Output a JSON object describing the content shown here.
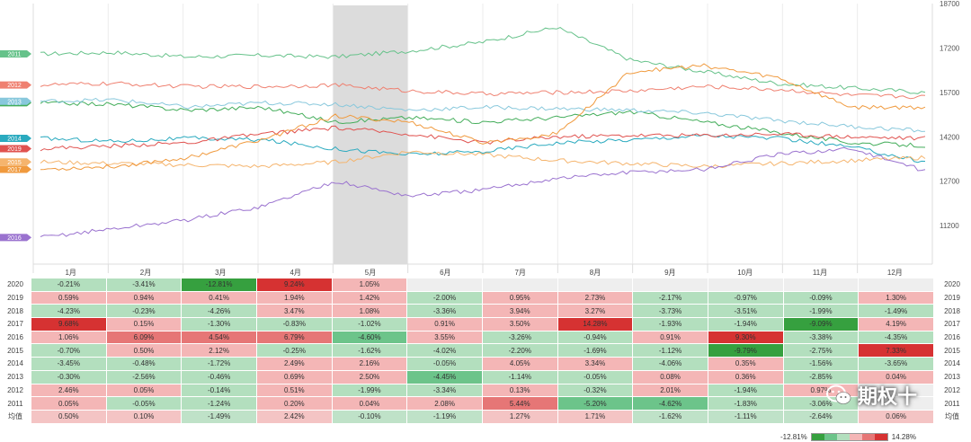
{
  "chart_data": {
    "type": "line",
    "title": "",
    "x_tick_labels": [
      "1月",
      "2月",
      "3月",
      "4月",
      "5月",
      "6月",
      "7月",
      "8月",
      "9月",
      "10月",
      "11月",
      "12月"
    ],
    "y_ticks": [
      18700,
      17200,
      15700,
      14200,
      12700,
      11200
    ],
    "ylim": [
      9900,
      18700
    ],
    "highlighted_month": "5月",
    "series": [
      {
        "name": "2011",
        "color": "#66c28a",
        "values": [
          17000,
          17050,
          16900,
          16950,
          16900,
          17100,
          17400,
          17900,
          16800,
          16400,
          16000,
          15850,
          15700
        ]
      },
      {
        "name": "2012",
        "color": "#ef8070",
        "values": [
          15950,
          16000,
          15900,
          15900,
          15950,
          15750,
          15650,
          15700,
          15750,
          15900,
          15800,
          15600,
          15550
        ]
      },
      {
        "name": "2013",
        "color": "#43ad5a",
        "values": [
          15350,
          15300,
          15100,
          15200,
          14700,
          14850,
          14700,
          14850,
          15050,
          14700,
          14350,
          14000,
          13900
        ]
      },
      {
        "name": "2013",
        "color": "#88c8dc",
        "values": [
          15400,
          15450,
          15200,
          15350,
          15300,
          15100,
          15200,
          15150,
          15100,
          15000,
          14750,
          14550,
          14400
        ]
      },
      {
        "name": "2014",
        "color": "#2aaabf",
        "values": [
          14150,
          14050,
          14150,
          14100,
          13800,
          13600,
          13700,
          14000,
          14100,
          14250,
          14150,
          13850,
          13350
        ]
      },
      {
        "name": "2019",
        "color": "#e0524f",
        "values": [
          13800,
          13900,
          14000,
          14300,
          14500,
          14300,
          14000,
          14200,
          14250,
          14250,
          14300,
          14200,
          14150
        ]
      },
      {
        "name": "2015",
        "color": "#f5b46d",
        "values": [
          13350,
          13300,
          13250,
          13200,
          13350,
          13700,
          13600,
          13400,
          13300,
          13200,
          13300,
          13400,
          13500
        ]
      },
      {
        "name": "2017",
        "color": "#f09a3e",
        "values": [
          13100,
          13200,
          13500,
          14100,
          14900,
          14700,
          14000,
          14300,
          16400,
          16600,
          16200,
          15200,
          15200
        ]
      },
      {
        "name": "2016",
        "color": "#9a72cf",
        "values": [
          10800,
          11100,
          11400,
          11850,
          12700,
          12200,
          12400,
          12800,
          13000,
          13100,
          13600,
          13800,
          13050
        ]
      }
    ],
    "table": {
      "rows": [
        {
          "year": "2020",
          "values": [
            "-0.21%",
            "-3.41%",
            "-12.81%",
            "9.24%",
            "1.05%",
            "",
            "",
            "",
            "",
            "",
            "",
            ""
          ]
        },
        {
          "year": "2019",
          "values": [
            "0.59%",
            "0.94%",
            "0.41%",
            "1.94%",
            "1.42%",
            "-2.00%",
            "0.95%",
            "2.73%",
            "-2.17%",
            "-0.97%",
            "-0.09%",
            "1.30%"
          ]
        },
        {
          "year": "2018",
          "values": [
            "-4.23%",
            "-0.23%",
            "-4.26%",
            "3.47%",
            "1.08%",
            "-3.36%",
            "3.94%",
            "3.27%",
            "-3.73%",
            "-3.51%",
            "-1.99%",
            "-1.49%"
          ]
        },
        {
          "year": "2017",
          "values": [
            "9.68%",
            "0.15%",
            "-1.30%",
            "-0.83%",
            "-1.02%",
            "0.91%",
            "3.50%",
            "14.28%",
            "-1.93%",
            "-1.94%",
            "-9.09%",
            "4.19%"
          ]
        },
        {
          "year": "2016",
          "values": [
            "1.06%",
            "6.09%",
            "4.54%",
            "6.79%",
            "-4.60%",
            "3.55%",
            "-3.26%",
            "-0.94%",
            "0.91%",
            "9.30%",
            "-3.38%",
            "-4.35%"
          ]
        },
        {
          "year": "2015",
          "values": [
            "-0.70%",
            "0.50%",
            "2.12%",
            "-0.25%",
            "-1.62%",
            "-4.02%",
            "-2.20%",
            "-1.69%",
            "-1.12%",
            "-9.79%",
            "-2.75%",
            "7.33%"
          ]
        },
        {
          "year": "2014",
          "values": [
            "-3.45%",
            "-0.48%",
            "-1.72%",
            "2.49%",
            "2.16%",
            "-0.05%",
            "4.05%",
            "3.34%",
            "-4.06%",
            "0.35%",
            "-1.56%",
            "-3.65%"
          ]
        },
        {
          "year": "2013",
          "values": [
            "-0.30%",
            "-2.56%",
            "-0.46%",
            "0.69%",
            "2.50%",
            "-4.45%",
            "-1.14%",
            "-0.05%",
            "0.08%",
            "0.36%",
            "-2.85%",
            "0.04%"
          ]
        },
        {
          "year": "2012",
          "values": [
            "2.46%",
            "0.05%",
            "-0.14%",
            "0.51%",
            "-1.99%",
            "-3.34%",
            "0.13%",
            "-0.32%",
            "2.01%",
            "-1.94%",
            "0.97%",
            ""
          ]
        },
        {
          "year": "2011",
          "values": [
            "0.05%",
            "-0.05%",
            "-1.24%",
            "0.20%",
            "0.04%",
            "2.08%",
            "5.44%",
            "-5.20%",
            "-4.62%",
            "-1.83%",
            "-3.06%",
            ""
          ]
        },
        {
          "year": "均值",
          "values": [
            "0.50%",
            "0.10%",
            "-1.49%",
            "2.42%",
            "-0.10%",
            "-1.19%",
            "1.27%",
            "1.71%",
            "-1.62%",
            "-1.11%",
            "-2.64%",
            "0.06%"
          ]
        }
      ],
      "legend_min": "-12.81%",
      "legend_max": "14.28%",
      "legend_colors": [
        "#36a03f",
        "#6cc48a",
        "#b3dfbe",
        "#f4b6b6",
        "#e67676",
        "#d63232"
      ]
    }
  },
  "watermark": {
    "text": "期权十"
  }
}
